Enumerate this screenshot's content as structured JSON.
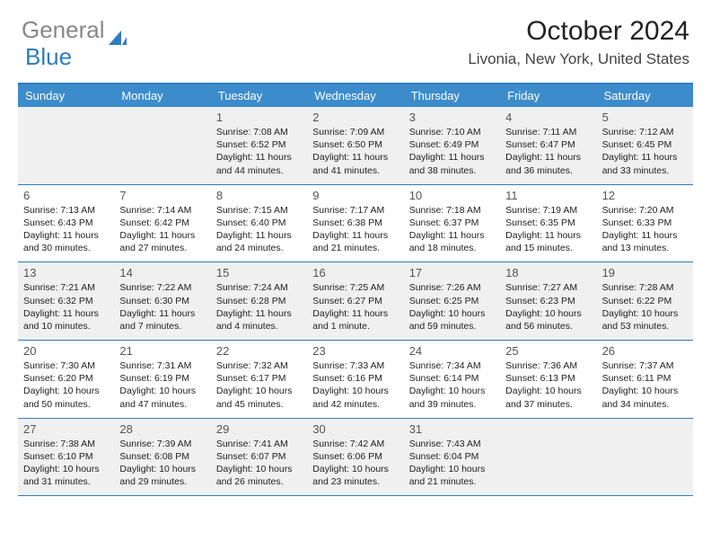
{
  "logo": {
    "word1": "General",
    "word2": "Blue"
  },
  "header": {
    "month_title": "October 2024",
    "location": "Livonia, New York, United States"
  },
  "calendar": {
    "day_names": [
      "Sunday",
      "Monday",
      "Tuesday",
      "Wednesday",
      "Thursday",
      "Friday",
      "Saturday"
    ],
    "accent_color": "#3c8ccc",
    "border_color": "#2f7bbf",
    "shade_color": "#f0f0f0",
    "weeks": [
      {
        "shaded": true,
        "cells": [
          {
            "empty": true
          },
          {
            "empty": true
          },
          {
            "day": "1",
            "sunrise": "Sunrise: 7:08 AM",
            "sunset": "Sunset: 6:52 PM",
            "daylight": "Daylight: 11 hours and 44 minutes."
          },
          {
            "day": "2",
            "sunrise": "Sunrise: 7:09 AM",
            "sunset": "Sunset: 6:50 PM",
            "daylight": "Daylight: 11 hours and 41 minutes."
          },
          {
            "day": "3",
            "sunrise": "Sunrise: 7:10 AM",
            "sunset": "Sunset: 6:49 PM",
            "daylight": "Daylight: 11 hours and 38 minutes."
          },
          {
            "day": "4",
            "sunrise": "Sunrise: 7:11 AM",
            "sunset": "Sunset: 6:47 PM",
            "daylight": "Daylight: 11 hours and 36 minutes."
          },
          {
            "day": "5",
            "sunrise": "Sunrise: 7:12 AM",
            "sunset": "Sunset: 6:45 PM",
            "daylight": "Daylight: 11 hours and 33 minutes."
          }
        ]
      },
      {
        "shaded": false,
        "cells": [
          {
            "day": "6",
            "sunrise": "Sunrise: 7:13 AM",
            "sunset": "Sunset: 6:43 PM",
            "daylight": "Daylight: 11 hours and 30 minutes."
          },
          {
            "day": "7",
            "sunrise": "Sunrise: 7:14 AM",
            "sunset": "Sunset: 6:42 PM",
            "daylight": "Daylight: 11 hours and 27 minutes."
          },
          {
            "day": "8",
            "sunrise": "Sunrise: 7:15 AM",
            "sunset": "Sunset: 6:40 PM",
            "daylight": "Daylight: 11 hours and 24 minutes."
          },
          {
            "day": "9",
            "sunrise": "Sunrise: 7:17 AM",
            "sunset": "Sunset: 6:38 PM",
            "daylight": "Daylight: 11 hours and 21 minutes."
          },
          {
            "day": "10",
            "sunrise": "Sunrise: 7:18 AM",
            "sunset": "Sunset: 6:37 PM",
            "daylight": "Daylight: 11 hours and 18 minutes."
          },
          {
            "day": "11",
            "sunrise": "Sunrise: 7:19 AM",
            "sunset": "Sunset: 6:35 PM",
            "daylight": "Daylight: 11 hours and 15 minutes."
          },
          {
            "day": "12",
            "sunrise": "Sunrise: 7:20 AM",
            "sunset": "Sunset: 6:33 PM",
            "daylight": "Daylight: 11 hours and 13 minutes."
          }
        ]
      },
      {
        "shaded": true,
        "cells": [
          {
            "day": "13",
            "sunrise": "Sunrise: 7:21 AM",
            "sunset": "Sunset: 6:32 PM",
            "daylight": "Daylight: 11 hours and 10 minutes."
          },
          {
            "day": "14",
            "sunrise": "Sunrise: 7:22 AM",
            "sunset": "Sunset: 6:30 PM",
            "daylight": "Daylight: 11 hours and 7 minutes."
          },
          {
            "day": "15",
            "sunrise": "Sunrise: 7:24 AM",
            "sunset": "Sunset: 6:28 PM",
            "daylight": "Daylight: 11 hours and 4 minutes."
          },
          {
            "day": "16",
            "sunrise": "Sunrise: 7:25 AM",
            "sunset": "Sunset: 6:27 PM",
            "daylight": "Daylight: 11 hours and 1 minute."
          },
          {
            "day": "17",
            "sunrise": "Sunrise: 7:26 AM",
            "sunset": "Sunset: 6:25 PM",
            "daylight": "Daylight: 10 hours and 59 minutes."
          },
          {
            "day": "18",
            "sunrise": "Sunrise: 7:27 AM",
            "sunset": "Sunset: 6:23 PM",
            "daylight": "Daylight: 10 hours and 56 minutes."
          },
          {
            "day": "19",
            "sunrise": "Sunrise: 7:28 AM",
            "sunset": "Sunset: 6:22 PM",
            "daylight": "Daylight: 10 hours and 53 minutes."
          }
        ]
      },
      {
        "shaded": false,
        "cells": [
          {
            "day": "20",
            "sunrise": "Sunrise: 7:30 AM",
            "sunset": "Sunset: 6:20 PM",
            "daylight": "Daylight: 10 hours and 50 minutes."
          },
          {
            "day": "21",
            "sunrise": "Sunrise: 7:31 AM",
            "sunset": "Sunset: 6:19 PM",
            "daylight": "Daylight: 10 hours and 47 minutes."
          },
          {
            "day": "22",
            "sunrise": "Sunrise: 7:32 AM",
            "sunset": "Sunset: 6:17 PM",
            "daylight": "Daylight: 10 hours and 45 minutes."
          },
          {
            "day": "23",
            "sunrise": "Sunrise: 7:33 AM",
            "sunset": "Sunset: 6:16 PM",
            "daylight": "Daylight: 10 hours and 42 minutes."
          },
          {
            "day": "24",
            "sunrise": "Sunrise: 7:34 AM",
            "sunset": "Sunset: 6:14 PM",
            "daylight": "Daylight: 10 hours and 39 minutes."
          },
          {
            "day": "25",
            "sunrise": "Sunrise: 7:36 AM",
            "sunset": "Sunset: 6:13 PM",
            "daylight": "Daylight: 10 hours and 37 minutes."
          },
          {
            "day": "26",
            "sunrise": "Sunrise: 7:37 AM",
            "sunset": "Sunset: 6:11 PM",
            "daylight": "Daylight: 10 hours and 34 minutes."
          }
        ]
      },
      {
        "shaded": true,
        "cells": [
          {
            "day": "27",
            "sunrise": "Sunrise: 7:38 AM",
            "sunset": "Sunset: 6:10 PM",
            "daylight": "Daylight: 10 hours and 31 minutes."
          },
          {
            "day": "28",
            "sunrise": "Sunrise: 7:39 AM",
            "sunset": "Sunset: 6:08 PM",
            "daylight": "Daylight: 10 hours and 29 minutes."
          },
          {
            "day": "29",
            "sunrise": "Sunrise: 7:41 AM",
            "sunset": "Sunset: 6:07 PM",
            "daylight": "Daylight: 10 hours and 26 minutes."
          },
          {
            "day": "30",
            "sunrise": "Sunrise: 7:42 AM",
            "sunset": "Sunset: 6:06 PM",
            "daylight": "Daylight: 10 hours and 23 minutes."
          },
          {
            "day": "31",
            "sunrise": "Sunrise: 7:43 AM",
            "sunset": "Sunset: 6:04 PM",
            "daylight": "Daylight: 10 hours and 21 minutes."
          },
          {
            "empty": true
          },
          {
            "empty": true
          }
        ]
      }
    ]
  }
}
